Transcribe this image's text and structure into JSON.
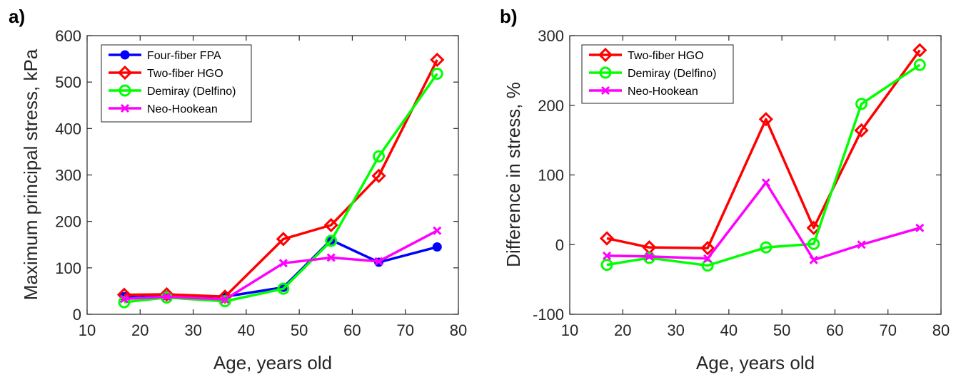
{
  "chart_data": [
    {
      "panel_label": "a)",
      "type": "line",
      "xlabel": "Age, years old",
      "ylabel": "Maximum principal stress, kPa",
      "xlim": [
        10,
        80
      ],
      "ylim": [
        0,
        600
      ],
      "xticks": [
        10,
        20,
        30,
        40,
        50,
        60,
        70,
        80
      ],
      "yticks": [
        0,
        100,
        200,
        300,
        400,
        500,
        600
      ],
      "legend_position": "top-left",
      "grid": false,
      "series": [
        {
          "name": "Four-fiber FPA",
          "color": "#0000ff",
          "marker": "dot",
          "x": [
            17,
            25,
            36,
            47,
            56,
            65,
            76
          ],
          "y": [
            38,
            40,
            38,
            58,
            160,
            112,
            145
          ]
        },
        {
          "name": "Two-fiber HGO",
          "color": "#ff0000",
          "marker": "diamond",
          "x": [
            17,
            25,
            36,
            47,
            56,
            65,
            76
          ],
          "y": [
            42,
            43,
            38,
            162,
            192,
            298,
            548
          ]
        },
        {
          "name": "Demiray (Delfino)",
          "color": "#00ff00",
          "marker": "circle",
          "x": [
            17,
            25,
            36,
            47,
            56,
            65,
            76
          ],
          "y": [
            26,
            36,
            28,
            55,
            158,
            340,
            518
          ]
        },
        {
          "name": "Neo-Hookean",
          "color": "#ff00ff",
          "marker": "x",
          "x": [
            17,
            25,
            36,
            47,
            56,
            65,
            76
          ],
          "y": [
            33,
            38,
            32,
            110,
            122,
            114,
            180
          ]
        }
      ]
    },
    {
      "panel_label": "b)",
      "type": "line",
      "xlabel": "Age, years old",
      "ylabel": "Difference in stress, %",
      "xlim": [
        10,
        80
      ],
      "ylim": [
        -100,
        300
      ],
      "xticks": [
        10,
        20,
        30,
        40,
        50,
        60,
        70,
        80
      ],
      "yticks": [
        -100,
        0,
        100,
        200,
        300
      ],
      "legend_position": "top-left",
      "grid": false,
      "series": [
        {
          "name": "Two-fiber HGO",
          "color": "#ff0000",
          "marker": "diamond",
          "x": [
            17,
            25,
            36,
            47,
            56,
            65,
            76
          ],
          "y": [
            9,
            -4,
            -5,
            180,
            24,
            164,
            279
          ]
        },
        {
          "name": "Demiray (Delfino)",
          "color": "#00ff00",
          "marker": "circle",
          "x": [
            17,
            25,
            36,
            47,
            56,
            65,
            76
          ],
          "y": [
            -29,
            -19,
            -30,
            -4,
            1,
            202,
            258
          ]
        },
        {
          "name": "Neo-Hookean",
          "color": "#ff00ff",
          "marker": "x",
          "x": [
            17,
            25,
            36,
            47,
            56,
            65,
            76
          ],
          "y": [
            -16,
            -17,
            -20,
            89,
            -22,
            0,
            24
          ]
        }
      ]
    }
  ]
}
